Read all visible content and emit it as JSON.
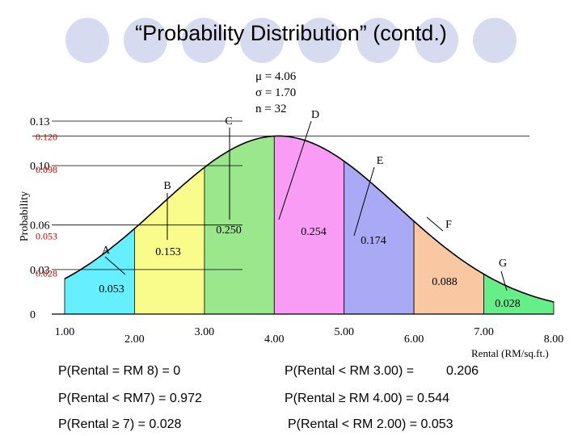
{
  "title": "“Probability Distribution” (contd.)",
  "decor": {
    "circle_color": "#d7dbef",
    "circle_count": 8
  },
  "stats": {
    "mu": "μ = 4.06",
    "sigma": "σ = 1.70",
    "n": "n = 32"
  },
  "chart_data": {
    "type": "area",
    "xlabel": "Rental (RM/sq.ft.)",
    "ylabel": "Probability",
    "xlim": [
      1,
      8
    ],
    "ylim": [
      0,
      0.13
    ],
    "x_ticks": [
      {
        "value": 1,
        "label": "1.00"
      },
      {
        "value": 2,
        "label": "2.00"
      },
      {
        "value": 3,
        "label": "3.00"
      },
      {
        "value": 4,
        "label": "4.00"
      },
      {
        "value": 5,
        "label": "5.00"
      },
      {
        "value": 6,
        "label": "6.00"
      },
      {
        "value": 7,
        "label": "7.00"
      },
      {
        "value": 8,
        "label": "8.00"
      }
    ],
    "y_ticks": [
      {
        "value": 0,
        "label": "0"
      },
      {
        "value": 0.03,
        "label": "0.03"
      },
      {
        "value": 0.06,
        "label": "0.06"
      },
      {
        "value": 0.1,
        "label": "0.10"
      },
      {
        "value": 0.13,
        "label": "0.13"
      }
    ],
    "y_marks": [
      {
        "value": 0.12,
        "label": "0.120"
      },
      {
        "value": 0.098,
        "label": "0.098"
      },
      {
        "value": 0.053,
        "label": "0.053"
      },
      {
        "value": 0.028,
        "label": "0.028"
      }
    ],
    "y_mark_color": "#cc0000",
    "curve": {
      "mu": 4.06,
      "sigma": 1.7,
      "peak": 0.12
    },
    "segments": [
      {
        "letter": "A",
        "from": 1.0,
        "to": 2.0,
        "value": "0.053",
        "color": "#66f0ff"
      },
      {
        "letter": "B",
        "from": 2.0,
        "to": 3.0,
        "value": "0.153",
        "color": "#f9fb8a"
      },
      {
        "letter": "C",
        "from": 3.0,
        "to": 4.0,
        "value": "0.250",
        "color": "#9ae88b"
      },
      {
        "letter": "D",
        "from": 4.0,
        "to": 5.0,
        "value": "0.254",
        "color": "#f99cf5"
      },
      {
        "letter": "E",
        "from": 5.0,
        "to": 6.0,
        "value": "0.174",
        "color": "#a9a9f5"
      },
      {
        "letter": "F",
        "from": 6.0,
        "to": 7.0,
        "value": "0.088",
        "color": "#f9c8a3"
      },
      {
        "letter": "G",
        "from": 7.0,
        "to": 8.0,
        "value": "0.028",
        "color": "#66ee88"
      }
    ]
  },
  "statements": {
    "s1": "P(Rental = RM 8) = 0",
    "s2": "P(Rental < RM 3.00) =",
    "s2_value": "0.206",
    "s3": "P(Rental < RM7) =  0.972",
    "s4": "P(Rental ≥ RM 4.00) = 0.544",
    "s5": "P(Rental ≥ 7) = 0.028",
    "s6": "P(Rental < RM 2.00) = 0.053"
  }
}
